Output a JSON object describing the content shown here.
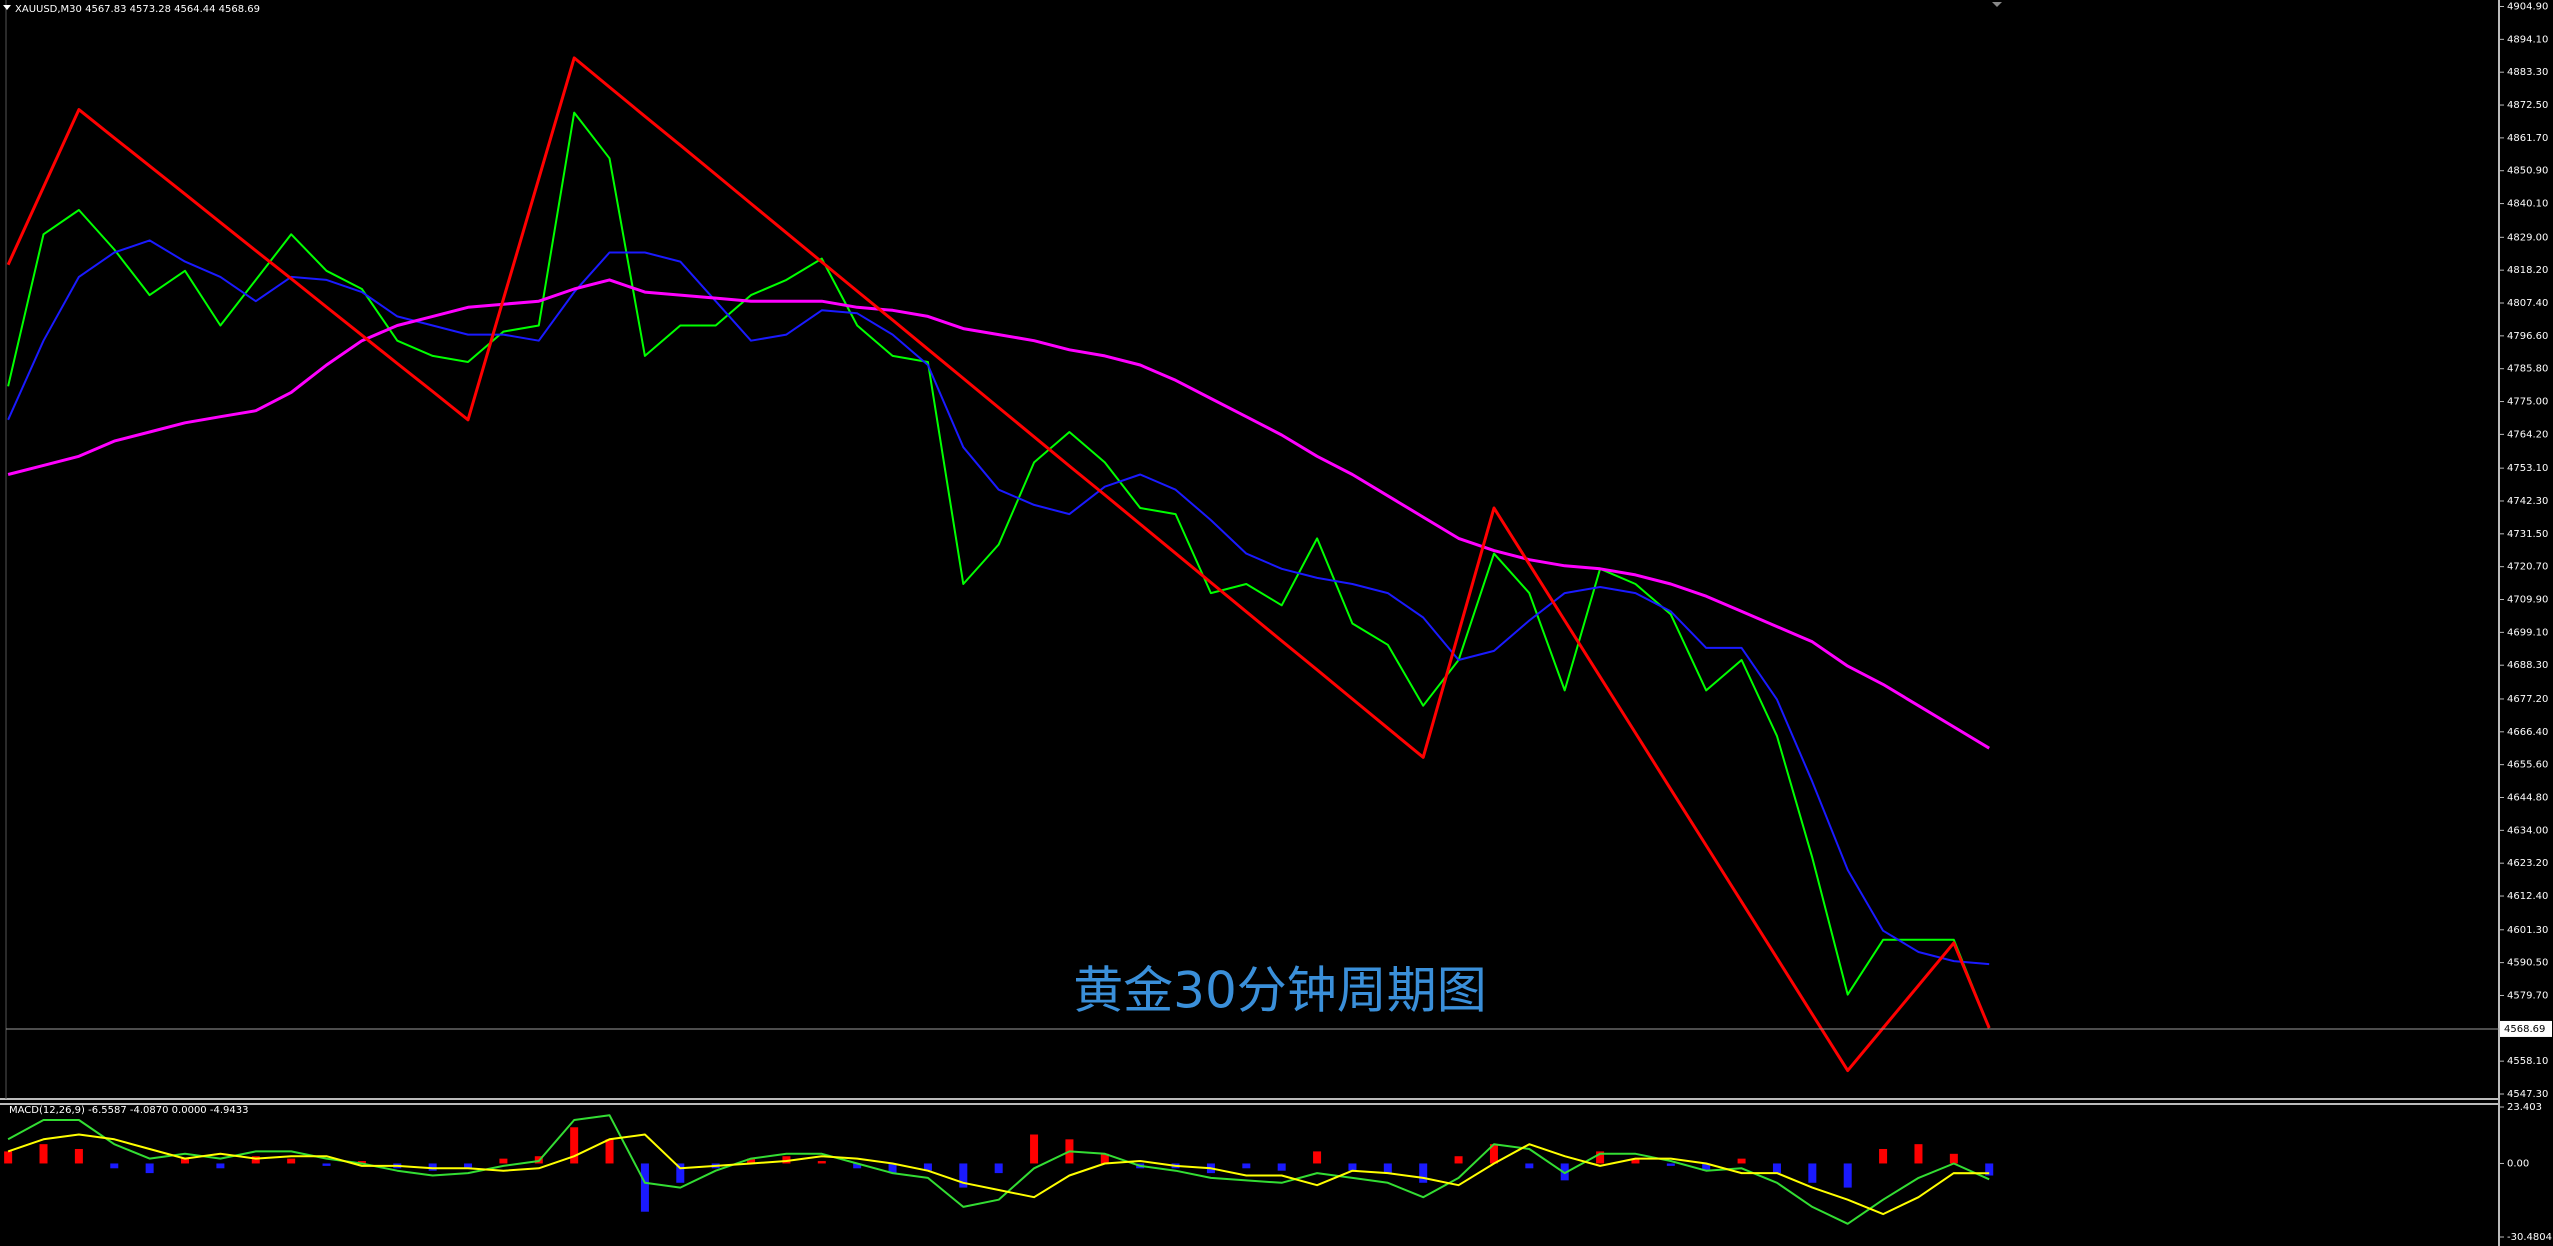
{
  "header": "XAUUSD,M30 4567.83 4573.28 4564.44 4568.69",
  "chart_data": [
    {
      "type": "line",
      "annotation": "黄金30分钟周期图",
      "ylim": [
        4547.3,
        4904.9
      ],
      "yticks": [
        {
          "value": 4904.9,
          "label": "4904.90"
        },
        {
          "value": 4894.1,
          "label": "4894.10"
        },
        {
          "value": 4883.3,
          "label": "4883.30"
        },
        {
          "value": 4872.5,
          "label": "4872.50"
        },
        {
          "value": 4861.7,
          "label": "4861.70"
        },
        {
          "value": 4850.9,
          "label": "4850.90"
        },
        {
          "value": 4840.1,
          "label": "4840.10"
        },
        {
          "value": 4829,
          "label": "4829.00"
        },
        {
          "value": 4818.2,
          "label": "4818.20"
        },
        {
          "value": 4807.4,
          "label": "4807.40"
        },
        {
          "value": 4796.6,
          "label": "4796.60"
        },
        {
          "value": 4785.8,
          "label": "4785.80"
        },
        {
          "value": 4775,
          "label": "4775.00"
        },
        {
          "value": 4764.2,
          "label": "4764.20"
        },
        {
          "value": 4753.1,
          "label": "4753.10"
        },
        {
          "value": 4742.3,
          "label": "4742.30"
        },
        {
          "value": 4731.5,
          "label": "4731.50"
        },
        {
          "value": 4720.7,
          "label": "4720.70"
        },
        {
          "value": 4709.9,
          "label": "4709.90"
        },
        {
          "value": 4699.1,
          "label": "4699.10"
        },
        {
          "value": 4688.3,
          "label": "4688.30"
        },
        {
          "value": 4677.2,
          "label": "4677.20"
        },
        {
          "value": 4666.4,
          "label": "4666.40"
        },
        {
          "value": 4655.6,
          "label": "4655.60"
        },
        {
          "value": 4644.8,
          "label": "4644.80"
        },
        {
          "value": 4634,
          "label": "4634.00"
        },
        {
          "value": 4623.2,
          "label": "4623.20"
        },
        {
          "value": 4612.4,
          "label": "4612.40"
        },
        {
          "value": 4601.3,
          "label": "4601.30"
        },
        {
          "value": 4590.5,
          "label": "4590.50"
        },
        {
          "value": 4579.7,
          "label": "4579.70"
        },
        {
          "value": 4558.1,
          "label": "4558.10"
        },
        {
          "value": 4547.3,
          "label": "4547.30"
        }
      ],
      "current_price": {
        "value": 4568.69,
        "label": "4568.69"
      },
      "series": [
        {
          "color": "#00ff00",
          "width": 2,
          "values": [
            4780,
            4830,
            4838,
            4825,
            4810,
            4818,
            4800,
            4815,
            4830,
            4818,
            4812,
            4795,
            4790,
            4788,
            4798,
            4800,
            4870,
            4855,
            4790,
            4800,
            4800,
            4810,
            4815,
            4822,
            4800,
            4790,
            4788,
            4715,
            4728,
            4755,
            4765,
            4755,
            4740,
            4738,
            4712,
            4715,
            4708,
            4730,
            4702,
            4695,
            4675,
            4690,
            4725,
            4712,
            4680,
            4720,
            4715,
            4705,
            4680,
            4690,
            4665,
            4625,
            4580,
            4598,
            4598,
            4598,
            4569
          ]
        },
        {
          "color": "#1a1aff",
          "width": 2,
          "values": [
            4769,
            4795,
            4816,
            4824,
            4828,
            4821,
            4816,
            4808,
            4816,
            4815,
            4811,
            4803,
            4800,
            4797,
            4797,
            4795,
            4811,
            4824,
            4824,
            4821,
            4808,
            4795,
            4797,
            4805,
            4804,
            4797,
            4787,
            4760,
            4746,
            4741,
            4738,
            4747,
            4751,
            4746,
            4736,
            4725,
            4720,
            4717,
            4715,
            4712,
            4704,
            4690,
            4693,
            4703,
            4712,
            4714,
            4712,
            4706,
            4694,
            4694,
            4677,
            4650,
            4621,
            4601,
            4594,
            4591,
            4590
          ]
        },
        {
          "color": "#ff00ff",
          "width": 3,
          "values": [
            4751,
            4754,
            4757,
            4762,
            4765,
            4768,
            4770,
            4772,
            4778,
            4787,
            4795,
            4800,
            4803,
            4806,
            4807,
            4808,
            4812,
            4815,
            4811,
            4810,
            4809,
            4808,
            4808,
            4808,
            4806,
            4805,
            4803,
            4799,
            4797,
            4795,
            4792,
            4790,
            4787,
            4782,
            4776,
            4770,
            4764,
            4757,
            4751,
            4744,
            4737,
            4730,
            4726,
            4723,
            4721,
            4720,
            4718,
            4715,
            4711,
            4706,
            4701,
            4696,
            4688,
            4682,
            4675,
            4668,
            4661
          ]
        },
        {
          "color": "#ff0000",
          "width": 3,
          "values": [
            4820,
            4845.5,
            4871,
            4861.7,
            4852.5,
            4843.2,
            4833.9,
            4824.6,
            4815.4,
            4806.1,
            4796.8,
            4787.5,
            4778.3,
            4769,
            4808.7,
            4848.3,
            4888,
            4878.4,
            4868.8,
            4859.3,
            4849.7,
            4840.1,
            4830.5,
            4820.9,
            4811.3,
            4801.8,
            4792.2,
            4782.6,
            4773,
            4763.4,
            4753.8,
            4744.3,
            4734.7,
            4725.1,
            4715.5,
            4705.9,
            4696.3,
            4686.8,
            4677.2,
            4667.6,
            4658,
            4699,
            4740,
            4721.5,
            4703,
            4684.5,
            4666,
            4647.5,
            4629,
            4610.5,
            4592,
            4573.5,
            4555,
            4569,
            4583,
            4597,
            4569
          ]
        }
      ]
    },
    {
      "type": "macd",
      "title": "MACD(12,26,9) -6.5587 -4.0870 0.0000 -4.9433",
      "ylim": [
        -30.4804,
        23.403
      ],
      "yticks": [
        23.403,
        {
          "value": 0,
          "label": "0.00"
        },
        -30.4804
      ],
      "series": [
        {
          "style": "histogram",
          "color_up": "#ff0000",
          "color_down": "#1a1aff",
          "values": [
            5,
            8,
            6,
            -2,
            -4,
            2,
            -2,
            3,
            2,
            -1,
            1,
            -2,
            -3,
            -2,
            2,
            3,
            15,
            10,
            -20,
            -8,
            -2,
            2,
            3,
            1,
            -2,
            -4,
            -3,
            -10,
            -4,
            12,
            10,
            4,
            -2,
            -2,
            -4,
            -2,
            -3,
            5,
            -3,
            -4,
            -8,
            3,
            8,
            -2,
            -7,
            5,
            2,
            -1,
            -3,
            2,
            -4,
            -8,
            -10,
            6,
            8,
            4,
            -5
          ]
        },
        {
          "color": "#33dd33",
          "width": 2,
          "values": [
            10,
            18,
            18,
            8,
            2,
            4,
            2,
            5,
            5,
            2,
            0,
            -3,
            -5,
            -4,
            -1,
            1,
            18,
            20,
            -8,
            -10,
            -3,
            2,
            4,
            4,
            0,
            -4,
            -6,
            -18,
            -15,
            -2,
            5,
            4,
            -1,
            -3,
            -6,
            -7,
            -8,
            -4,
            -6,
            -8,
            -14,
            -6,
            8,
            6,
            -4,
            4,
            4,
            1,
            -3,
            -2,
            -8,
            -18,
            -25,
            -15,
            -6,
            0,
            -6.5587
          ]
        },
        {
          "color": "#ffff00",
          "width": 2,
          "values": [
            5,
            10,
            12,
            10,
            6,
            2,
            4,
            2,
            3,
            3,
            -1,
            -1,
            -2,
            -2,
            -3,
            -2,
            3,
            10,
            12,
            -2,
            -1,
            0,
            1,
            3,
            2,
            0,
            -3,
            -8,
            -11,
            -14,
            -5,
            0,
            1,
            -1,
            -2,
            -5,
            -5,
            -9,
            -3,
            -4,
            -6,
            -9,
            0,
            8,
            3,
            -1,
            2,
            2,
            0,
            -4,
            -4,
            -10,
            -15,
            -21,
            -14,
            -4,
            -4.087
          ]
        }
      ]
    }
  ]
}
